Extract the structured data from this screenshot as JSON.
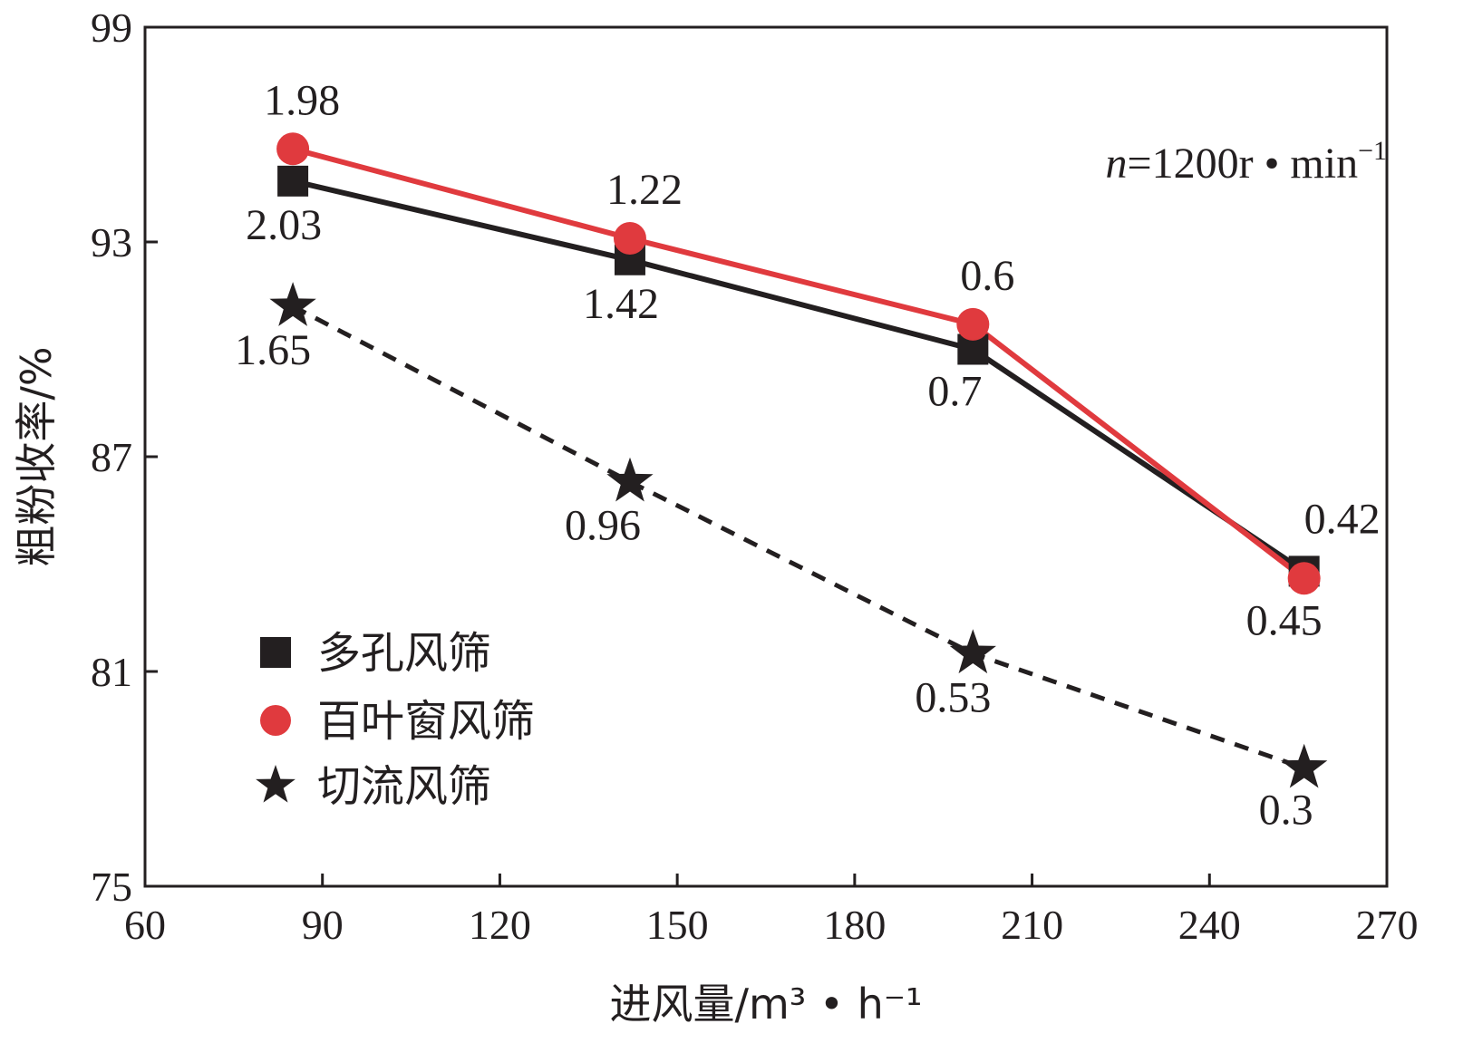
{
  "chart_data": {
    "type": "line",
    "title": "",
    "xlabel": "进风量/m³ • h⁻¹",
    "ylabel": "粗粉收率/%",
    "xlim": [
      60,
      270
    ],
    "ylim": [
      75,
      99
    ],
    "xticks": [
      60,
      90,
      120,
      150,
      180,
      210,
      240,
      270
    ],
    "yticks": [
      75,
      81,
      87,
      93,
      99
    ],
    "annotation": "n=1200r • min⁻¹",
    "annotation_parts": {
      "var": "n",
      "rest": "=1200r • min",
      "sup": "−1"
    },
    "legend_position": "bottom-left",
    "series": [
      {
        "name": "多孔风筛",
        "marker": "square",
        "color": "#231f20",
        "line_style": "solid",
        "x": [
          85,
          142,
          200,
          256
        ],
        "y": [
          94.7,
          92.5,
          90.0,
          83.8
        ],
        "labels": [
          "2.03",
          "1.42",
          "0.7",
          "0.42"
        ]
      },
      {
        "name": "百叶窗风筛",
        "marker": "circle",
        "color": "#e03a3e",
        "line_style": "solid",
        "x": [
          85,
          142,
          200,
          256
        ],
        "y": [
          95.6,
          93.1,
          90.7,
          83.6
        ],
        "labels": [
          "1.98",
          "1.22",
          "0.6",
          "0.45"
        ]
      },
      {
        "name": "切流风筛",
        "marker": "star",
        "color": "#231f20",
        "line_style": "dashed",
        "x": [
          85,
          142,
          200,
          256
        ],
        "y": [
          91.2,
          86.3,
          81.5,
          78.3
        ],
        "labels": [
          "1.65",
          "0.96",
          "0.53",
          "0.3"
        ]
      }
    ]
  }
}
